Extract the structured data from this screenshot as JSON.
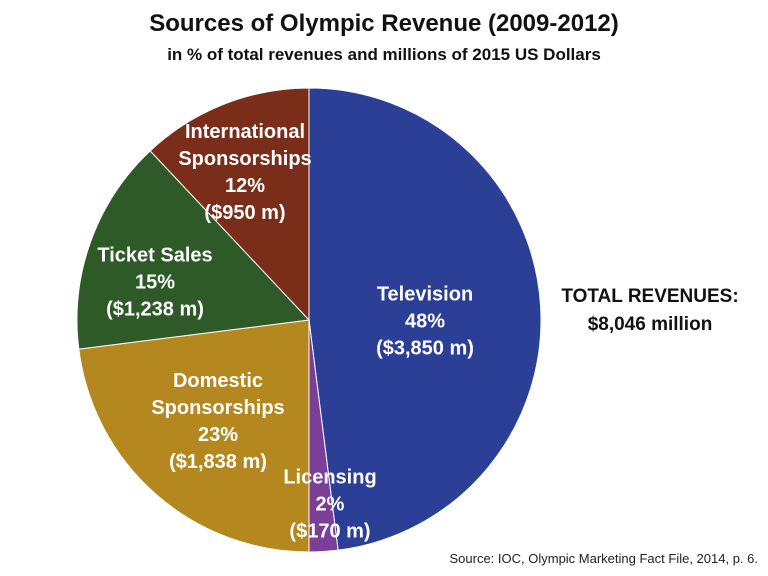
{
  "chart_data": {
    "type": "pie",
    "title": "Sources of Olympic Revenue (2009-2012)",
    "subtitle": "in % of total revenues and millions of 2015 US Dollars",
    "categories": [
      "Television",
      "Licensing",
      "Domestic Sponsorships",
      "Ticket Sales",
      "International Sponsorships"
    ],
    "values": [
      48,
      2,
      23,
      15,
      12
    ],
    "value_labels": [
      "48%",
      "2%",
      "23%",
      "15%",
      "12%"
    ],
    "amounts": [
      3850,
      170,
      1838,
      1238,
      950
    ],
    "amount_labels": [
      "($3,850 m)",
      "($170 m)",
      "($1,838 m)",
      "($1,238 m)",
      "($950 m)"
    ],
    "colors": [
      "#2b3f97",
      "#7b3f98",
      "#b5881f",
      "#2d5a27",
      "#7a2e1a"
    ],
    "total_heading": "TOTAL REVENUES:",
    "total": 8046,
    "total_label": "$8,046 million",
    "source": "Source: IOC, Olympic Marketing Fact File, 2014, p. 6."
  }
}
